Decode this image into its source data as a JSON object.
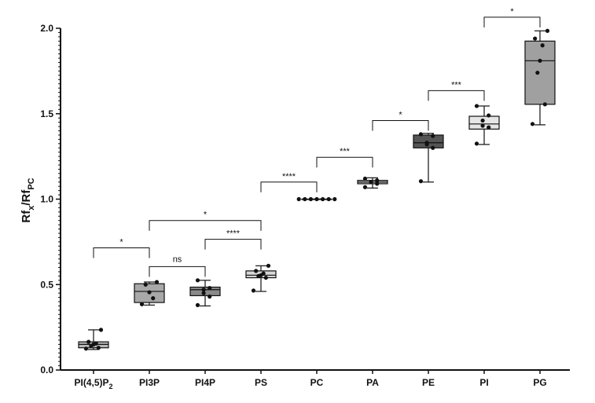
{
  "chart_data": {
    "type": "box",
    "ylabel": {
      "main": "Rf",
      "sub1": "x",
      "sep": "/Rf",
      "sub2": "PC"
    },
    "ylim": [
      0,
      2.0
    ],
    "yticks": [
      "0.0",
      "0.5",
      "1.0",
      "1.5",
      "2.0"
    ],
    "grid": false,
    "categories": [
      {
        "id": "pip2",
        "label_main": "PI(4,5)P",
        "label_sub": "2",
        "fill": "#b8b8b8",
        "box": {
          "min": 0.12,
          "q1": 0.13,
          "median": 0.15,
          "q3": 0.165,
          "max": 0.235
        },
        "points": [
          0.125,
          0.13,
          0.14,
          0.15,
          0.155,
          0.165,
          0.235
        ]
      },
      {
        "id": "pi3p",
        "label_main": "PI3P",
        "label_sub": "",
        "fill": "#a8a8a8",
        "box": {
          "min": 0.38,
          "q1": 0.395,
          "median": 0.46,
          "q3": 0.505,
          "max": 0.515
        },
        "points": [
          0.385,
          0.42,
          0.455,
          0.5,
          0.515
        ]
      },
      {
        "id": "pi4p",
        "label_main": "PI4P",
        "label_sub": "",
        "fill": "#8a8a8a",
        "box": {
          "min": 0.375,
          "q1": 0.435,
          "median": 0.47,
          "q3": 0.485,
          "max": 0.525
        },
        "points": [
          0.38,
          0.43,
          0.45,
          0.47,
          0.48,
          0.525
        ]
      },
      {
        "id": "ps",
        "label_main": "PS",
        "label_sub": "",
        "fill": "#d8d8d8",
        "box": {
          "min": 0.46,
          "q1": 0.54,
          "median": 0.555,
          "q3": 0.58,
          "max": 0.61
        },
        "points": [
          0.465,
          0.54,
          0.55,
          0.555,
          0.565,
          0.58,
          0.61
        ]
      },
      {
        "id": "pc",
        "label_main": "PC",
        "label_sub": "",
        "fill": "#9a9a9a",
        "box": {
          "min": 1.0,
          "q1": 1.0,
          "median": 1.0,
          "q3": 1.0,
          "max": 1.0
        },
        "points": [
          1.0,
          1.0,
          1.0,
          1.0,
          1.0,
          1.0,
          1.0
        ]
      },
      {
        "id": "pa",
        "label_main": "PA",
        "label_sub": "",
        "fill": "#c8c8c8",
        "box": {
          "min": 1.065,
          "q1": 1.09,
          "median": 1.1,
          "q3": 1.11,
          "max": 1.125
        },
        "points": [
          1.07,
          1.09,
          1.1,
          1.1,
          1.11,
          1.12
        ]
      },
      {
        "id": "pe",
        "label_main": "PE",
        "label_sub": "",
        "fill": "#555555",
        "box": {
          "min": 1.1,
          "q1": 1.3,
          "median": 1.33,
          "q3": 1.375,
          "max": 1.385
        },
        "points": [
          1.105,
          1.3,
          1.32,
          1.33,
          1.37,
          1.38
        ]
      },
      {
        "id": "pi",
        "label_main": "PI",
        "label_sub": "",
        "fill": "#e6e6e6",
        "box": {
          "min": 1.32,
          "q1": 1.41,
          "median": 1.44,
          "q3": 1.485,
          "max": 1.545
        },
        "points": [
          1.325,
          1.42,
          1.43,
          1.46,
          1.49,
          1.545
        ]
      },
      {
        "id": "pg",
        "label_main": "PG",
        "label_sub": "",
        "fill": "#a0a0a0",
        "box": {
          "min": 1.435,
          "q1": 1.555,
          "median": 1.81,
          "q3": 1.925,
          "max": 1.985
        },
        "points": [
          1.44,
          1.555,
          1.74,
          1.81,
          1.9,
          1.94,
          1.985
        ]
      }
    ],
    "significance": [
      {
        "from": 0,
        "to": 1,
        "y": 0.715,
        "label": "*"
      },
      {
        "from": 1,
        "to": 2,
        "y": 0.605,
        "label": "ns"
      },
      {
        "from": 1,
        "to": 3,
        "y": 0.875,
        "label": "*"
      },
      {
        "from": 2,
        "to": 3,
        "y": 0.765,
        "label": "****"
      },
      {
        "from": 3,
        "to": 4,
        "y": 1.1,
        "label": "****"
      },
      {
        "from": 4,
        "to": 5,
        "y": 1.245,
        "label": "***"
      },
      {
        "from": 5,
        "to": 6,
        "y": 1.46,
        "label": "*"
      },
      {
        "from": 6,
        "to": 7,
        "y": 1.635,
        "label": "***"
      },
      {
        "from": 7,
        "to": 8,
        "y": 2.065,
        "label": "*"
      }
    ]
  }
}
